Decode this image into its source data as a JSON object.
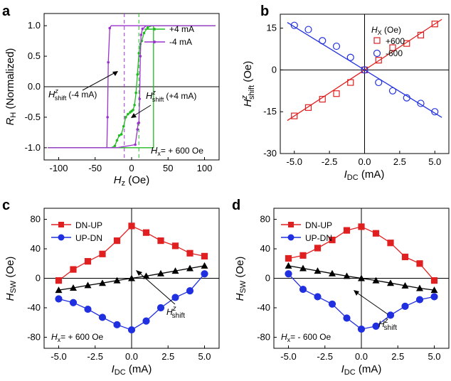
{
  "chart_data": [
    {
      "panel": "a",
      "type": "line",
      "xlabel": "H_z (Oe)",
      "ylabel": "R_H (Normalized)",
      "xlim": [
        -120,
        120
      ],
      "ylim": [
        -1.2,
        1.2
      ],
      "xticks": [
        -100,
        -50,
        0,
        50,
        100
      ],
      "yticks": [
        -1.0,
        -0.5,
        0.0,
        0.5,
        1.0
      ],
      "series": [
        {
          "name": "+4 mA",
          "color": "#22bb22",
          "values": [
            [
              -115,
              -1.0
            ],
            [
              -40,
              -1.0
            ],
            [
              -28,
              -1.0
            ],
            [
              -23,
              -0.97
            ],
            [
              -20,
              -0.88
            ],
            [
              -17,
              -0.8
            ],
            [
              -14,
              -0.78
            ],
            [
              -11,
              -0.65
            ],
            [
              -8,
              -0.5
            ],
            [
              -5,
              -0.45
            ],
            [
              -2,
              -0.42
            ],
            [
              0,
              -0.4
            ],
            [
              2,
              -0.38
            ],
            [
              4,
              -0.3
            ],
            [
              6,
              -0.1
            ],
            [
              8,
              0.2
            ],
            [
              10,
              0.55
            ],
            [
              12,
              0.7
            ],
            [
              14,
              0.75
            ],
            [
              17,
              0.88
            ],
            [
              22,
              0.97
            ],
            [
              28,
              1.0
            ],
            [
              115,
              1.0
            ],
            [
              30,
              1.0
            ],
            [
              30,
              -1.0
            ],
            [
              -115,
              -1.0
            ]
          ]
        },
        {
          "name": "-4 mA",
          "color": "#9933cc",
          "values": [
            [
              115,
              1.0
            ],
            [
              -20,
              1.0
            ],
            [
              -28,
              1.0
            ],
            [
              -30,
              0.96
            ],
            [
              -32,
              0.4
            ],
            [
              -33,
              -0.5
            ],
            [
              -34,
              -1.0
            ],
            [
              -115,
              -1.0
            ],
            [
              -34,
              -1.0
            ],
            [
              -20,
              -1.0
            ],
            [
              5,
              -0.95
            ],
            [
              8,
              -0.7
            ],
            [
              9,
              -0.6
            ],
            [
              10,
              -0.59
            ],
            [
              11,
              -0.2
            ],
            [
              12,
              0.5
            ],
            [
              13,
              0.85
            ],
            [
              15,
              0.95
            ],
            [
              20,
              1.0
            ],
            [
              115,
              1.0
            ]
          ]
        }
      ],
      "vlines": [
        {
          "x": -10,
          "color": "#9933cc"
        },
        {
          "x": 10,
          "color": "#22bb22"
        }
      ],
      "hlines": [
        0
      ],
      "legend": [
        "+4 mA",
        "-4 mA"
      ],
      "annotations": {
        "shift_minus_main": "H",
        "shift_minus_sup": "z",
        "shift_minus_sub": "shift",
        "shift_minus_tail": "(-4 mA)",
        "shift_plus_main": "H",
        "shift_plus_sup": "z",
        "shift_plus_sub": "shift",
        "shift_plus_tail": "(+4 mA)",
        "field_main": "H",
        "field_sub": "x",
        "field_tail": "= + 600 Oe"
      }
    },
    {
      "panel": "b",
      "type": "scatter",
      "xlabel": "I_DC (mA)",
      "ylabel": "H^z_shift (Oe)",
      "xlim": [
        -6,
        6
      ],
      "ylim": [
        -30,
        20
      ],
      "xticks": [
        -5.0,
        -2.5,
        0.0,
        2.5,
        5.0
      ],
      "yticks": [
        -30,
        -15,
        0,
        15
      ],
      "legend_title": "H_x (Oe)",
      "series": [
        {
          "name": "+600",
          "color": "#e02020",
          "marker": "square",
          "x": [
            -5,
            -4,
            -3,
            -2,
            -1,
            0,
            1,
            2,
            3,
            4,
            5
          ],
          "values": [
            -16.5,
            -13.5,
            -10.5,
            -8.5,
            -4.5,
            0.0,
            3.5,
            8.0,
            9.5,
            12.5,
            16.5
          ],
          "fit": {
            "slope": 3.3,
            "intercept": 0
          }
        },
        {
          "name": "-600",
          "color": "#2030e0",
          "marker": "circle",
          "x": [
            -5,
            -4,
            -3,
            -2,
            -1,
            0,
            1,
            2,
            3,
            4,
            5
          ],
          "values": [
            16.0,
            14.5,
            10.5,
            8.5,
            4.5,
            0.0,
            -4.5,
            -7.5,
            -10.0,
            -12.0,
            -15.0
          ],
          "fit": {
            "slope": -3.1,
            "intercept": 0
          }
        }
      ],
      "hlines": [
        0
      ],
      "vlines": [
        0
      ]
    },
    {
      "panel": "c",
      "type": "line",
      "xlabel": "I_DC (mA)",
      "ylabel": "H_SW (Oe)",
      "xlim": [
        -6,
        6
      ],
      "ylim": [
        -95,
        95
      ],
      "xticks": [
        -5.0,
        -2.5,
        0.0,
        2.5,
        5.0
      ],
      "yticks": [
        -80,
        -40,
        0,
        40,
        80
      ],
      "x": [
        -5,
        -4,
        -3,
        -2,
        -1,
        0,
        1,
        2,
        3,
        4,
        5
      ],
      "series": [
        {
          "name": "DN-UP",
          "color": "#e02020",
          "marker": "square",
          "values": [
            -3,
            12,
            23,
            33,
            51,
            71,
            62,
            51,
            44,
            34,
            30
          ]
        },
        {
          "name": "UP-DN",
          "color": "#2030e0",
          "marker": "circle",
          "values": [
            -28,
            -33,
            -42,
            -53,
            -63,
            -70,
            -58,
            -40,
            -26,
            -17,
            6
          ]
        },
        {
          "name": "H^z_shift",
          "color": "#000000",
          "marker": "triangle",
          "values": [
            -16,
            -13,
            -9.5,
            -6.5,
            -3,
            0,
            3,
            6.5,
            10,
            13.5,
            17
          ]
        }
      ],
      "hlines": [
        0
      ],
      "vlines": [
        0
      ],
      "legend": [
        "DN-UP",
        "UP-DN"
      ],
      "annotations": {
        "field_main": "H",
        "field_sub": "x",
        "field_tail": "= + 600 Oe",
        "shift_main": "H",
        "shift_sup": "z",
        "shift_sub": "shift"
      }
    },
    {
      "panel": "d",
      "type": "line",
      "xlabel": "I_DC (mA)",
      "ylabel": "H_SW (Oe)",
      "xlim": [
        -6,
        6
      ],
      "ylim": [
        -95,
        95
      ],
      "xticks": [
        -5.0,
        -2.5,
        0.0,
        2.5,
        5.0
      ],
      "yticks": [
        -80,
        -40,
        0,
        40,
        80
      ],
      "x": [
        -5,
        -4,
        -3,
        -2,
        -1,
        0,
        1,
        2,
        3,
        4,
        5
      ],
      "series": [
        {
          "name": "DN-UP",
          "color": "#e02020",
          "marker": "square",
          "values": [
            27,
            31,
            41,
            52,
            65,
            70,
            61,
            48,
            29,
            20,
            -3
          ]
        },
        {
          "name": "UP-DN",
          "color": "#2030e0",
          "marker": "circle",
          "values": [
            6,
            -15,
            -25,
            -35,
            -54,
            -69,
            -65,
            -50,
            -38,
            -29,
            -25
          ]
        },
        {
          "name": "H^z_shift",
          "color": "#000000",
          "marker": "triangle",
          "values": [
            17,
            13.5,
            10,
            6.5,
            3,
            0,
            -3,
            -6.5,
            -10,
            -13.5,
            -16
          ]
        }
      ],
      "hlines": [
        0
      ],
      "vlines": [
        0
      ],
      "legend": [
        "DN-UP",
        "UP-DN"
      ],
      "annotations": {
        "field_main": "H",
        "field_sub": "x",
        "field_tail": "= - 600 Oe",
        "shift_main": "H",
        "shift_sup": "z",
        "shift_sub": "shift"
      }
    }
  ],
  "labels": {
    "a_panel": "a",
    "b_panel": "b",
    "c_panel": "c",
    "d_panel": "d",
    "a_xlabel_main": "H",
    "a_xlabel_sub": "z",
    "a_xlabel_tail": " (Oe)",
    "a_ylabel_main": "R",
    "a_ylabel_sub": "H",
    "a_ylabel_tail": " (Normalized)",
    "b_legend_title_main": "H",
    "b_legend_title_sub": "X",
    "b_legend_title_tail": " (Oe)",
    "b_ylabel_main": "H",
    "b_ylabel_sup": "z",
    "b_ylabel_sub": "shift",
    "b_ylabel_tail": " (Oe)",
    "idc_main": "I",
    "idc_sub": "DC",
    "idc_tail": " (mA)",
    "hsw_main": "H",
    "hsw_sub": "SW",
    "hsw_tail": " (Oe)"
  }
}
